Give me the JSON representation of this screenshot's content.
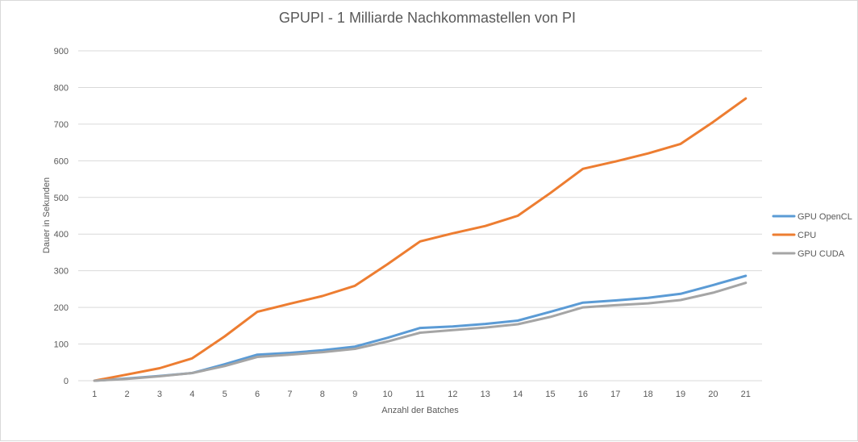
{
  "chart_data": {
    "type": "line",
    "title": "GPUPI - 1 Milliarde Nachkommastellen von PI",
    "xlabel": "Anzahl der Batches",
    "ylabel": "Dauer in Sekunden",
    "categories": [
      "1",
      "2",
      "3",
      "4",
      "5",
      "6",
      "7",
      "8",
      "9",
      "10",
      "11",
      "12",
      "13",
      "14",
      "15",
      "16",
      "17",
      "18",
      "19",
      "20",
      "21"
    ],
    "ylim": [
      0,
      900
    ],
    "yticks": [
      0,
      100,
      200,
      300,
      400,
      500,
      600,
      700,
      800,
      900
    ],
    "grid": true,
    "legend": "right",
    "series": [
      {
        "name": "GPU OpenCL",
        "color": "#5b9bd5",
        "values": [
          0,
          6,
          13,
          21,
          45,
          71,
          76,
          83,
          93,
          117,
          144,
          148,
          155,
          164,
          188,
          213,
          219,
          226,
          237,
          261,
          286
        ]
      },
      {
        "name": "CPU",
        "color": "#ed7d31",
        "values": [
          0,
          17,
          34,
          61,
          121,
          188,
          210,
          231,
          259,
          318,
          380,
          402,
          422,
          450,
          512,
          578,
          598,
          620,
          646,
          706,
          770
        ]
      },
      {
        "name": "GPU CUDA",
        "color": "#a5a5a5",
        "values": [
          0,
          5,
          12,
          21,
          40,
          65,
          71,
          78,
          87,
          107,
          131,
          138,
          145,
          154,
          174,
          200,
          206,
          211,
          220,
          240,
          267
        ]
      }
    ]
  }
}
